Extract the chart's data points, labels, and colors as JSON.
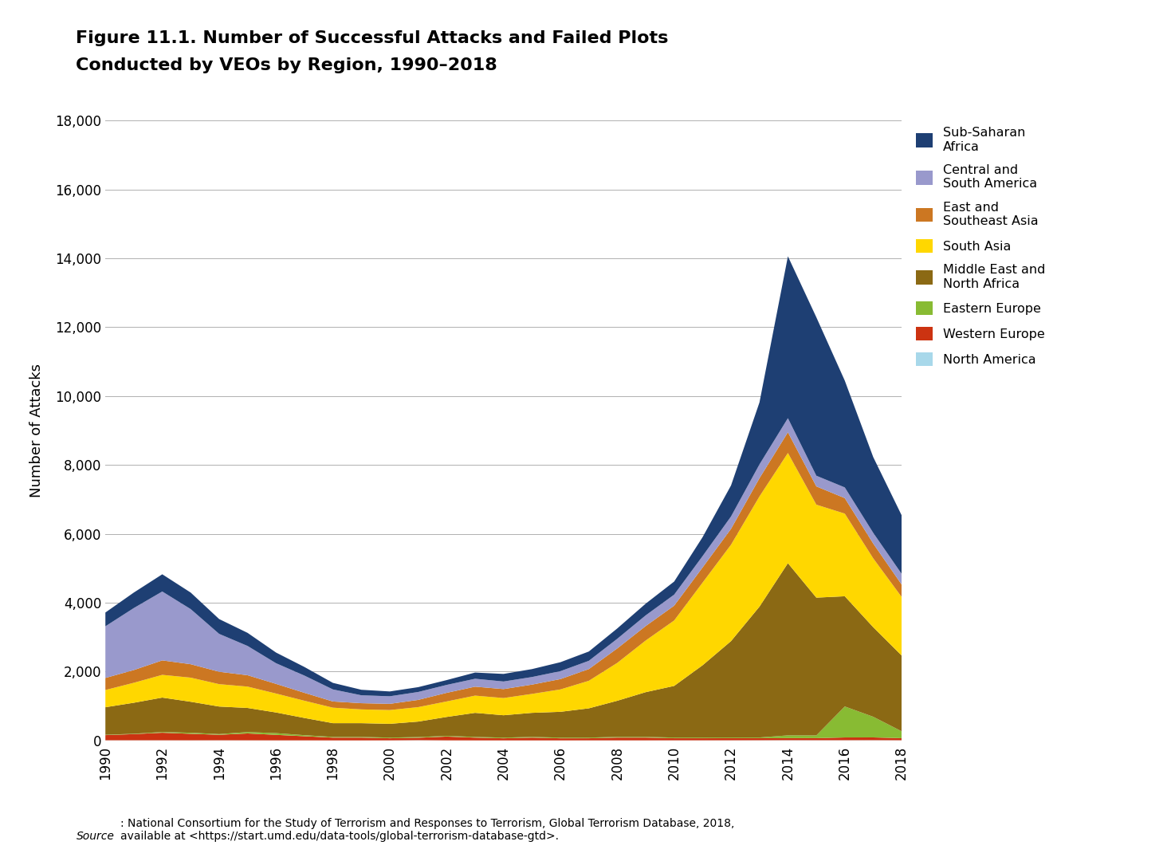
{
  "title_line1": "Figure 11.1. Number of Successful Attacks and Failed Plots",
  "title_line2": "Conducted by VEOs by Region, 1990–2018",
  "ylabel": "Number of Attacks",
  "source_italic": "Source",
  "source_normal": ": National Consortium for the Study of Terrorism and Responses to Terrorism, Global Terrorism Database, 2018,\navailable at <https://start.umd.edu/data-tools/global-terrorism-database-gtd>.",
  "years": [
    1990,
    1991,
    1992,
    1993,
    1994,
    1995,
    1996,
    1997,
    1998,
    1999,
    2000,
    2001,
    2002,
    2003,
    2004,
    2005,
    2006,
    2007,
    2008,
    2009,
    2010,
    2011,
    2012,
    2013,
    2014,
    2015,
    2016,
    2017,
    2018
  ],
  "regions": [
    "North America",
    "Western Europe",
    "Eastern Europe",
    "Middle East and\nNorth Africa",
    "South Asia",
    "East and\nSoutheast Asia",
    "Central and\nSouth America",
    "Sub-Saharan\nAfrica"
  ],
  "legend_labels": [
    "North America",
    "Western Europe",
    "Eastern Europe",
    "Middle East and\nNorth Africa",
    "South Asia",
    "East and\nSoutheast Asia",
    "Central and\nSouth America",
    "Sub-Saharan\nAfrica"
  ],
  "colors": [
    "#a8d8ea",
    "#cc3311",
    "#88bb33",
    "#8B6914",
    "#FFD700",
    "#CC7722",
    "#9999CC",
    "#1E3F73"
  ],
  "data": {
    "North America": [
      5,
      5,
      5,
      4,
      5,
      4,
      3,
      3,
      2,
      2,
      3,
      8,
      3,
      2,
      2,
      2,
      2,
      3,
      3,
      3,
      4,
      4,
      5,
      6,
      8,
      7,
      7,
      8,
      6
    ],
    "Western Europe": [
      150,
      180,
      220,
      190,
      160,
      200,
      160,
      120,
      80,
      80,
      60,
      70,
      110,
      80,
      60,
      80,
      60,
      60,
      80,
      80,
      60,
      60,
      60,
      60,
      60,
      60,
      80,
      80,
      60
    ],
    "Eastern Europe": [
      10,
      10,
      20,
      30,
      20,
      40,
      50,
      30,
      20,
      20,
      20,
      20,
      20,
      20,
      20,
      20,
      20,
      20,
      20,
      20,
      20,
      20,
      20,
      20,
      80,
      80,
      900,
      600,
      200
    ],
    "Middle East and\nNorth Africa": [
      800,
      900,
      1000,
      900,
      800,
      700,
      600,
      500,
      400,
      400,
      400,
      450,
      550,
      700,
      650,
      700,
      750,
      850,
      1050,
      1300,
      1500,
      2100,
      2800,
      3800,
      5000,
      4000,
      3200,
      2600,
      2200
    ],
    "South Asia": [
      500,
      580,
      660,
      700,
      650,
      620,
      550,
      500,
      450,
      400,
      400,
      420,
      450,
      500,
      500,
      550,
      650,
      800,
      1100,
      1500,
      1900,
      2400,
      2800,
      3200,
      3200,
      2700,
      2400,
      2000,
      1700
    ],
    "East and\nSoutheast Asia": [
      350,
      370,
      420,
      390,
      360,
      330,
      280,
      230,
      180,
      180,
      180,
      210,
      250,
      260,
      260,
      270,
      300,
      340,
      420,
      420,
      430,
      440,
      460,
      530,
      600,
      530,
      450,
      430,
      360
    ],
    "Central and\nSouth America": [
      1500,
      1800,
      2000,
      1600,
      1100,
      850,
      600,
      500,
      350,
      230,
      220,
      230,
      230,
      230,
      220,
      220,
      230,
      240,
      280,
      310,
      320,
      330,
      360,
      400,
      410,
      310,
      310,
      310,
      310
    ],
    "Sub-Saharan\nAfrica": [
      400,
      450,
      500,
      480,
      430,
      380,
      310,
      250,
      190,
      160,
      140,
      140,
      140,
      180,
      220,
      230,
      260,
      270,
      300,
      340,
      380,
      550,
      900,
      1800,
      4700,
      4600,
      3100,
      2200,
      1700
    ]
  },
  "ylim": [
    0,
    18000
  ],
  "yticks": [
    0,
    2000,
    4000,
    6000,
    8000,
    10000,
    12000,
    14000,
    16000,
    18000
  ],
  "background_color": "#ffffff",
  "grid_color": "#b0b0b0"
}
